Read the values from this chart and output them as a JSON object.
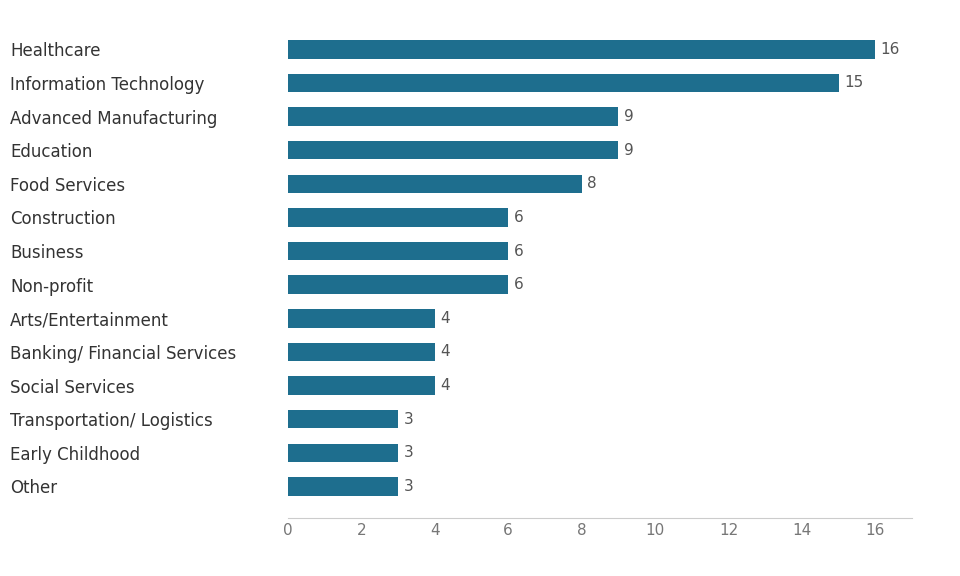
{
  "categories": [
    "Other",
    "Early Childhood",
    "Transportation/ Logistics",
    "Social Services",
    "Banking/ Financial Services",
    "Arts/Entertainment",
    "Non-profit",
    "Business",
    "Construction",
    "Food Services",
    "Education",
    "Advanced Manufacturing",
    "Information Technology",
    "Healthcare"
  ],
  "values": [
    3,
    3,
    3,
    4,
    4,
    4,
    6,
    6,
    6,
    8,
    9,
    9,
    15,
    16
  ],
  "bar_color": "#1e6e8e",
  "xlim": [
    0,
    17
  ],
  "xticks": [
    0,
    2,
    4,
    6,
    8,
    10,
    12,
    14,
    16
  ],
  "label_fontsize": 12,
  "value_label_fontsize": 11,
  "tick_fontsize": 11,
  "background_color": "#ffffff",
  "bar_height": 0.55
}
